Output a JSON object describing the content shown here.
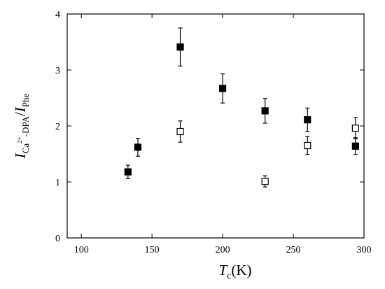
{
  "chart_data": {
    "type": "scatter",
    "x_ticks": [
      100,
      150,
      200,
      250,
      300
    ],
    "y_ticks": [
      0,
      1,
      2,
      3,
      4
    ],
    "x_tick_labels": [
      "100",
      "150",
      "200",
      "250",
      "300"
    ],
    "y_tick_labels": [
      "0",
      "1",
      "2",
      "3",
      "4"
    ],
    "xlim": [
      90,
      300
    ],
    "ylim": [
      0,
      4
    ],
    "grid": false,
    "xlabel": {
      "main": "T",
      "subscript": "c",
      "suffix": "(K)"
    },
    "ylabel": {
      "part1": "I",
      "sub1": "Ca",
      "sup1": "2+",
      "sub1b": "-DPA",
      "slash": "/",
      "part2": "I",
      "sub2": "Phe"
    },
    "series": [
      {
        "marker": "filled-square",
        "color": "#000000",
        "points": [
          {
            "x": 133,
            "y": 1.18,
            "yerr": 0.12
          },
          {
            "x": 140,
            "y": 1.62,
            "yerr": 0.16
          },
          {
            "x": 170,
            "y": 3.41,
            "yerr": 0.34
          },
          {
            "x": 200,
            "y": 2.67,
            "yerr": 0.26
          },
          {
            "x": 230,
            "y": 2.27,
            "yerr": 0.22
          },
          {
            "x": 260,
            "y": 2.11,
            "yerr": 0.21
          },
          {
            "x": 294,
            "y": 1.64,
            "yerr": 0.15
          }
        ]
      },
      {
        "marker": "open-square",
        "color": "#000000",
        "points": [
          {
            "x": 170,
            "y": 1.9,
            "yerr": 0.19
          },
          {
            "x": 230,
            "y": 1.01,
            "yerr": 0.1
          },
          {
            "x": 260,
            "y": 1.65,
            "yerr": 0.16
          },
          {
            "x": 294,
            "y": 1.96,
            "yerr": 0.19
          }
        ]
      }
    ]
  }
}
